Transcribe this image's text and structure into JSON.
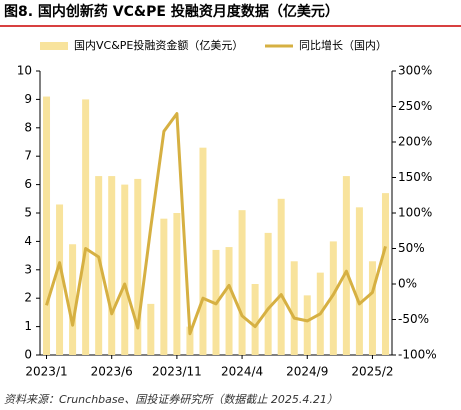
{
  "chart_data": {
    "type": "bar_line",
    "title": "图8. 国内创新药 VC&PE 投融资月度数据（亿美元）",
    "source": "资料来源：Crunchbase、国投证券研究所（数据截止 2025.4.21）",
    "categories": [
      "2023/1",
      null,
      null,
      null,
      null,
      "2023/6",
      null,
      null,
      null,
      null,
      "2023/11",
      null,
      null,
      null,
      null,
      "2024/4",
      null,
      null,
      null,
      null,
      "2024/9",
      null,
      null,
      null,
      null,
      "2025/2",
      null
    ],
    "series": [
      {
        "name": "国内VC&PE投融资金额（亿美元）",
        "color": "#f8e39c",
        "type": "bar",
        "values": [
          9.1,
          5.3,
          3.9,
          9.0,
          6.3,
          6.3,
          6.0,
          6.2,
          1.8,
          4.8,
          5.0,
          1.0,
          7.3,
          3.7,
          3.8,
          5.1,
          2.5,
          4.3,
          5.5,
          3.3,
          2.1,
          2.9,
          4.0,
          6.3,
          5.2,
          3.3,
          5.7
        ]
      },
      {
        "name": "同比增长（国内）",
        "color": "#d6b042",
        "type": "line",
        "axis": "y2",
        "values": [
          -30,
          30,
          -58,
          50,
          38,
          -42,
          0,
          -62,
          80,
          215,
          240,
          -70,
          -20,
          -28,
          -2,
          -45,
          -60,
          -35,
          -15,
          -48,
          -52,
          -42,
          -15,
          18,
          -28,
          -12,
          53
        ]
      }
    ],
    "ylim": [
      0,
      10
    ],
    "yticks": [
      0,
      1,
      2,
      3,
      4,
      5,
      6,
      7,
      8,
      9,
      10
    ],
    "y2lim": [
      -100,
      300
    ],
    "y2ticks": [
      {
        "value": -100,
        "label": "-100%"
      },
      {
        "value": -50,
        "label": "-50%"
      },
      {
        "value": 0,
        "label": "0%"
      },
      {
        "value": 50,
        "label": "50%"
      },
      {
        "value": 100,
        "label": "100%"
      },
      {
        "value": 150,
        "label": "150%"
      },
      {
        "value": 200,
        "label": "200%"
      },
      {
        "value": 250,
        "label": "250%"
      },
      {
        "value": 300,
        "label": "300%"
      }
    ]
  }
}
